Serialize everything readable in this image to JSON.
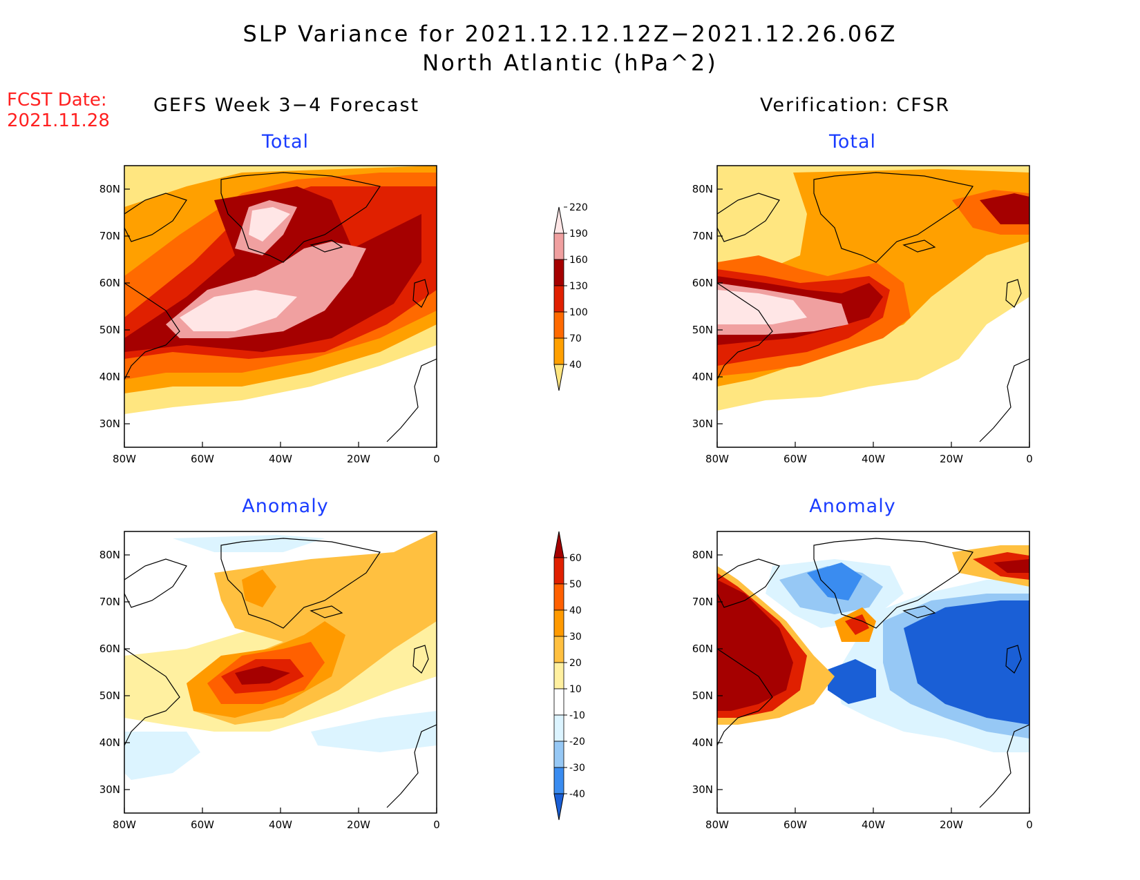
{
  "title": {
    "line1": "SLP Variance for 2021.12.12.12Z−2021.12.26.06Z",
    "line2": "North Atlantic (hPa^2)"
  },
  "fcst": {
    "line1": "FCST Date:",
    "line2": "2021.11.28"
  },
  "columns": {
    "left": "GEFS Week 3−4 Forecast",
    "right": "Verification: CFSR"
  },
  "panels": [
    {
      "id": "gefs-total",
      "subtitle": "Total"
    },
    {
      "id": "cfsr-total",
      "subtitle": "Total"
    },
    {
      "id": "gefs-anomaly",
      "subtitle": "Anomaly"
    },
    {
      "id": "cfsr-anomaly",
      "subtitle": "Anomaly"
    }
  ],
  "axes": {
    "lat_labels": [
      "80N",
      "70N",
      "60N",
      "50N",
      "40N",
      "30N"
    ],
    "lat_values": [
      80,
      70,
      60,
      50,
      40,
      30
    ],
    "lon_labels": [
      "80W",
      "60W",
      "40W",
      "20W",
      "0"
    ],
    "lon_values": [
      -80,
      -60,
      -40,
      -20,
      0
    ],
    "lat_range": [
      25,
      85
    ],
    "lon_range": [
      -80,
      0
    ]
  },
  "colorbars": {
    "total": {
      "labels": [
        "40",
        "70",
        "100",
        "130",
        "160",
        "190",
        "220"
      ],
      "colors": [
        "#ffe680",
        "#ffa000",
        "#ff6a00",
        "#e02000",
        "#a50000",
        "#f0a0a0",
        "#ffe6e6"
      ]
    },
    "anomaly": {
      "labels": [
        "-40",
        "-30",
        "-20",
        "-10",
        "10",
        "20",
        "30",
        "40",
        "50",
        "60"
      ],
      "colors": [
        "#1a5fd6",
        "#3a8cf0",
        "#96c8f5",
        "#dcf4ff",
        "#ffffff",
        "#fff0a0",
        "#ffc040",
        "#ff9a00",
        "#ff6000",
        "#e02000",
        "#a50000"
      ]
    }
  }
}
